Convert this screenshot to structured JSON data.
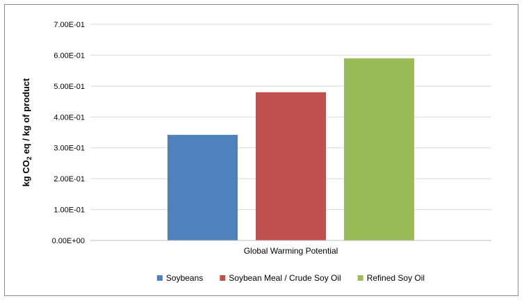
{
  "chart_data": {
    "type": "bar",
    "title": "",
    "xlabel": "",
    "ylabel": {
      "prefix": "kg CO",
      "subscript": "2",
      "suffix": " eq / kg of product"
    },
    "categories": [
      "Global Warming Potential"
    ],
    "series": [
      {
        "name": "Soybeans",
        "values": [
          0.342
        ],
        "color": "#4f81bd"
      },
      {
        "name": "Soybean Meal / Crude Soy Oil",
        "values": [
          0.48
        ],
        "color": "#c0504d"
      },
      {
        "name": "Refined Soy Oil",
        "values": [
          0.59
        ],
        "color": "#9bbb59"
      }
    ],
    "ylim": [
      0,
      0.7
    ],
    "yticks": [
      {
        "value": 0.0,
        "label": "0.00E+00"
      },
      {
        "value": 0.1,
        "label": "1.00E-01"
      },
      {
        "value": 0.2,
        "label": "2.00E-01"
      },
      {
        "value": 0.3,
        "label": "3.00E-01"
      },
      {
        "value": 0.4,
        "label": "4.00E-01"
      },
      {
        "value": 0.5,
        "label": "5.00E-01"
      },
      {
        "value": 0.6,
        "label": "6.00E-01"
      },
      {
        "value": 0.7,
        "label": "7.00E-01"
      }
    ],
    "grid": true,
    "gridColor": "#d9d9d9",
    "legend": "bottom"
  }
}
